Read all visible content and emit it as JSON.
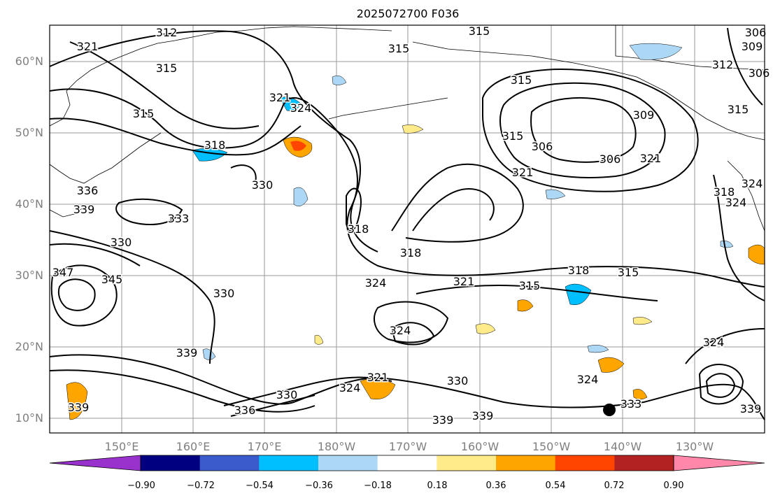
{
  "title": "2025072700 F036",
  "axes": {
    "lon_ticks": [
      "150°E",
      "160°E",
      "170°E",
      "180°W",
      "170°W",
      "160°W",
      "150°W",
      "140°W",
      "130°W"
    ],
    "lat_ticks": [
      "60°N",
      "50°N",
      "40°N",
      "30°N",
      "20°N",
      "10°N"
    ],
    "lon_range": [
      "140°E",
      "120°W"
    ],
    "lat_range": [
      "8°N",
      "65°N"
    ],
    "grid": true
  },
  "contours": {
    "color": "#000000",
    "labels": [
      "312",
      "315",
      "315",
      "321",
      "315",
      "315",
      "318",
      "324",
      "321",
      "315",
      "306",
      "306",
      "309",
      "312",
      "315",
      "309",
      "306",
      "306",
      "321",
      "321",
      "315",
      "318",
      "324",
      "324",
      "330",
      "336",
      "333",
      "330",
      "345",
      "347",
      "330",
      "318",
      "318",
      "321",
      "324",
      "324",
      "315",
      "318",
      "315",
      "330",
      "339",
      "339",
      "339",
      "324",
      "321",
      "324",
      "330",
      "336",
      "333",
      "339",
      "339",
      "324",
      "339"
    ]
  },
  "colorbar": {
    "colors": [
      "#9932cc",
      "#000080",
      "#3b5bcc",
      "#00bfff",
      "#add8f5",
      "#ffffff",
      "#ffeb8a",
      "#ffa500",
      "#ff4500",
      "#b22222",
      "#ff88aa"
    ],
    "tick_labels": [
      "−0.90",
      "−0.72",
      "−0.54",
      "−0.36",
      "−0.18",
      "0.18",
      "0.36",
      "0.54",
      "0.72",
      "0.90"
    ]
  },
  "marker": {
    "description_color": "#000000"
  }
}
